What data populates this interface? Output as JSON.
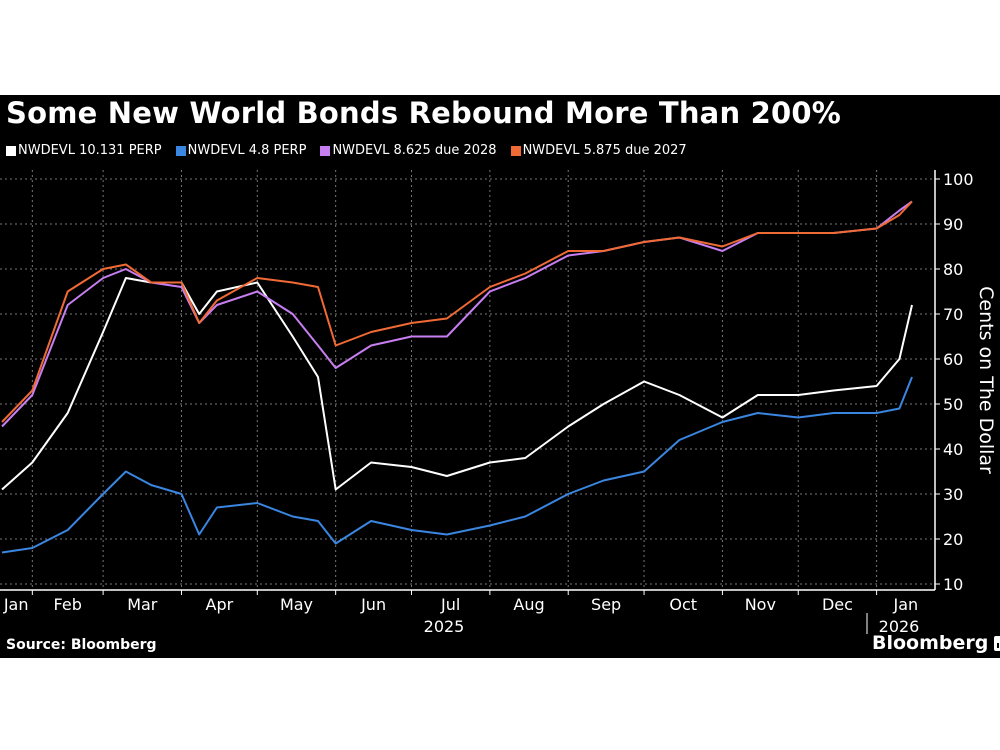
{
  "header": {
    "title": "Some New World Bonds Rebound More Than 200%"
  },
  "legend": [
    {
      "label": "NWDEVL 10.131 PERP",
      "color": "#ffffff"
    },
    {
      "label": "NWDEVL 4.8 PERP",
      "color": "#3a86e0"
    },
    {
      "label": "NWDEVL 8.625 due 2028",
      "color": "#c77ef0"
    },
    {
      "label": "NWDEVL 5.875 due 2027",
      "color": "#f06a35"
    }
  ],
  "footer": {
    "source": "Source: Bloomberg",
    "brand": "Bloomberg"
  },
  "chart_data": {
    "type": "line",
    "title": "Some New World Bonds Rebound More Than 200%",
    "xlabel": "",
    "ylabel": "Cents on The Dollar",
    "ylim": [
      10,
      100
    ],
    "yticks": [
      10,
      20,
      30,
      40,
      50,
      60,
      70,
      80,
      90,
      100
    ],
    "y_axis_position": "right",
    "grid": true,
    "legend_position": "top",
    "x_tick_labels": [
      "Jan",
      "Feb",
      "Mar",
      "Apr",
      "May",
      "Jun",
      "Jul",
      "Aug",
      "Sep",
      "Oct",
      "Nov",
      "Dec",
      "Jan"
    ],
    "x_year_labels": [
      {
        "label": "2025",
        "under": "Jul"
      },
      {
        "label": "2026",
        "under": "Jan"
      }
    ],
    "x": [
      "2025-01-20",
      "2025-02-01",
      "2025-02-15",
      "2025-03-01",
      "2025-03-10",
      "2025-03-20",
      "2025-04-01",
      "2025-04-08",
      "2025-04-15",
      "2025-05-01",
      "2025-05-15",
      "2025-05-25",
      "2025-06-01",
      "2025-06-15",
      "2025-07-01",
      "2025-07-15",
      "2025-08-01",
      "2025-08-15",
      "2025-09-01",
      "2025-09-15",
      "2025-10-01",
      "2025-10-15",
      "2025-11-01",
      "2025-11-15",
      "2025-12-01",
      "2025-12-15",
      "2026-01-01",
      "2026-01-10",
      "2026-01-15"
    ],
    "series": [
      {
        "name": "NWDEVL 10.131 PERP",
        "color": "#ffffff",
        "values": [
          31,
          37,
          48,
          66,
          78,
          77,
          77,
          70,
          75,
          77,
          65,
          56,
          31,
          37,
          36,
          34,
          37,
          38,
          45,
          50,
          55,
          52,
          47,
          52,
          52,
          53,
          54,
          60,
          72
        ]
      },
      {
        "name": "NWDEVL 4.8 PERP",
        "color": "#3a86e0",
        "values": [
          17,
          18,
          22,
          30,
          35,
          32,
          30,
          21,
          27,
          28,
          25,
          24,
          19,
          24,
          22,
          21,
          23,
          25,
          30,
          33,
          35,
          42,
          46,
          48,
          47,
          48,
          48,
          49,
          56
        ]
      },
      {
        "name": "NWDEVL 8.625 due 2028",
        "color": "#c77ef0",
        "values": [
          45,
          52,
          72,
          78,
          80,
          77,
          76,
          68,
          72,
          75,
          70,
          63,
          58,
          63,
          65,
          65,
          75,
          78,
          83,
          84,
          86,
          87,
          84,
          88,
          88,
          88,
          89,
          93,
          95
        ]
      },
      {
        "name": "NWDEVL 5.875 due 2027",
        "color": "#f06a35",
        "values": [
          46,
          53,
          75,
          80,
          81,
          77,
          77,
          68,
          73,
          78,
          77,
          76,
          63,
          66,
          68,
          69,
          76,
          79,
          84,
          84,
          86,
          87,
          85,
          88,
          88,
          88,
          89,
          92,
          95
        ]
      }
    ]
  }
}
